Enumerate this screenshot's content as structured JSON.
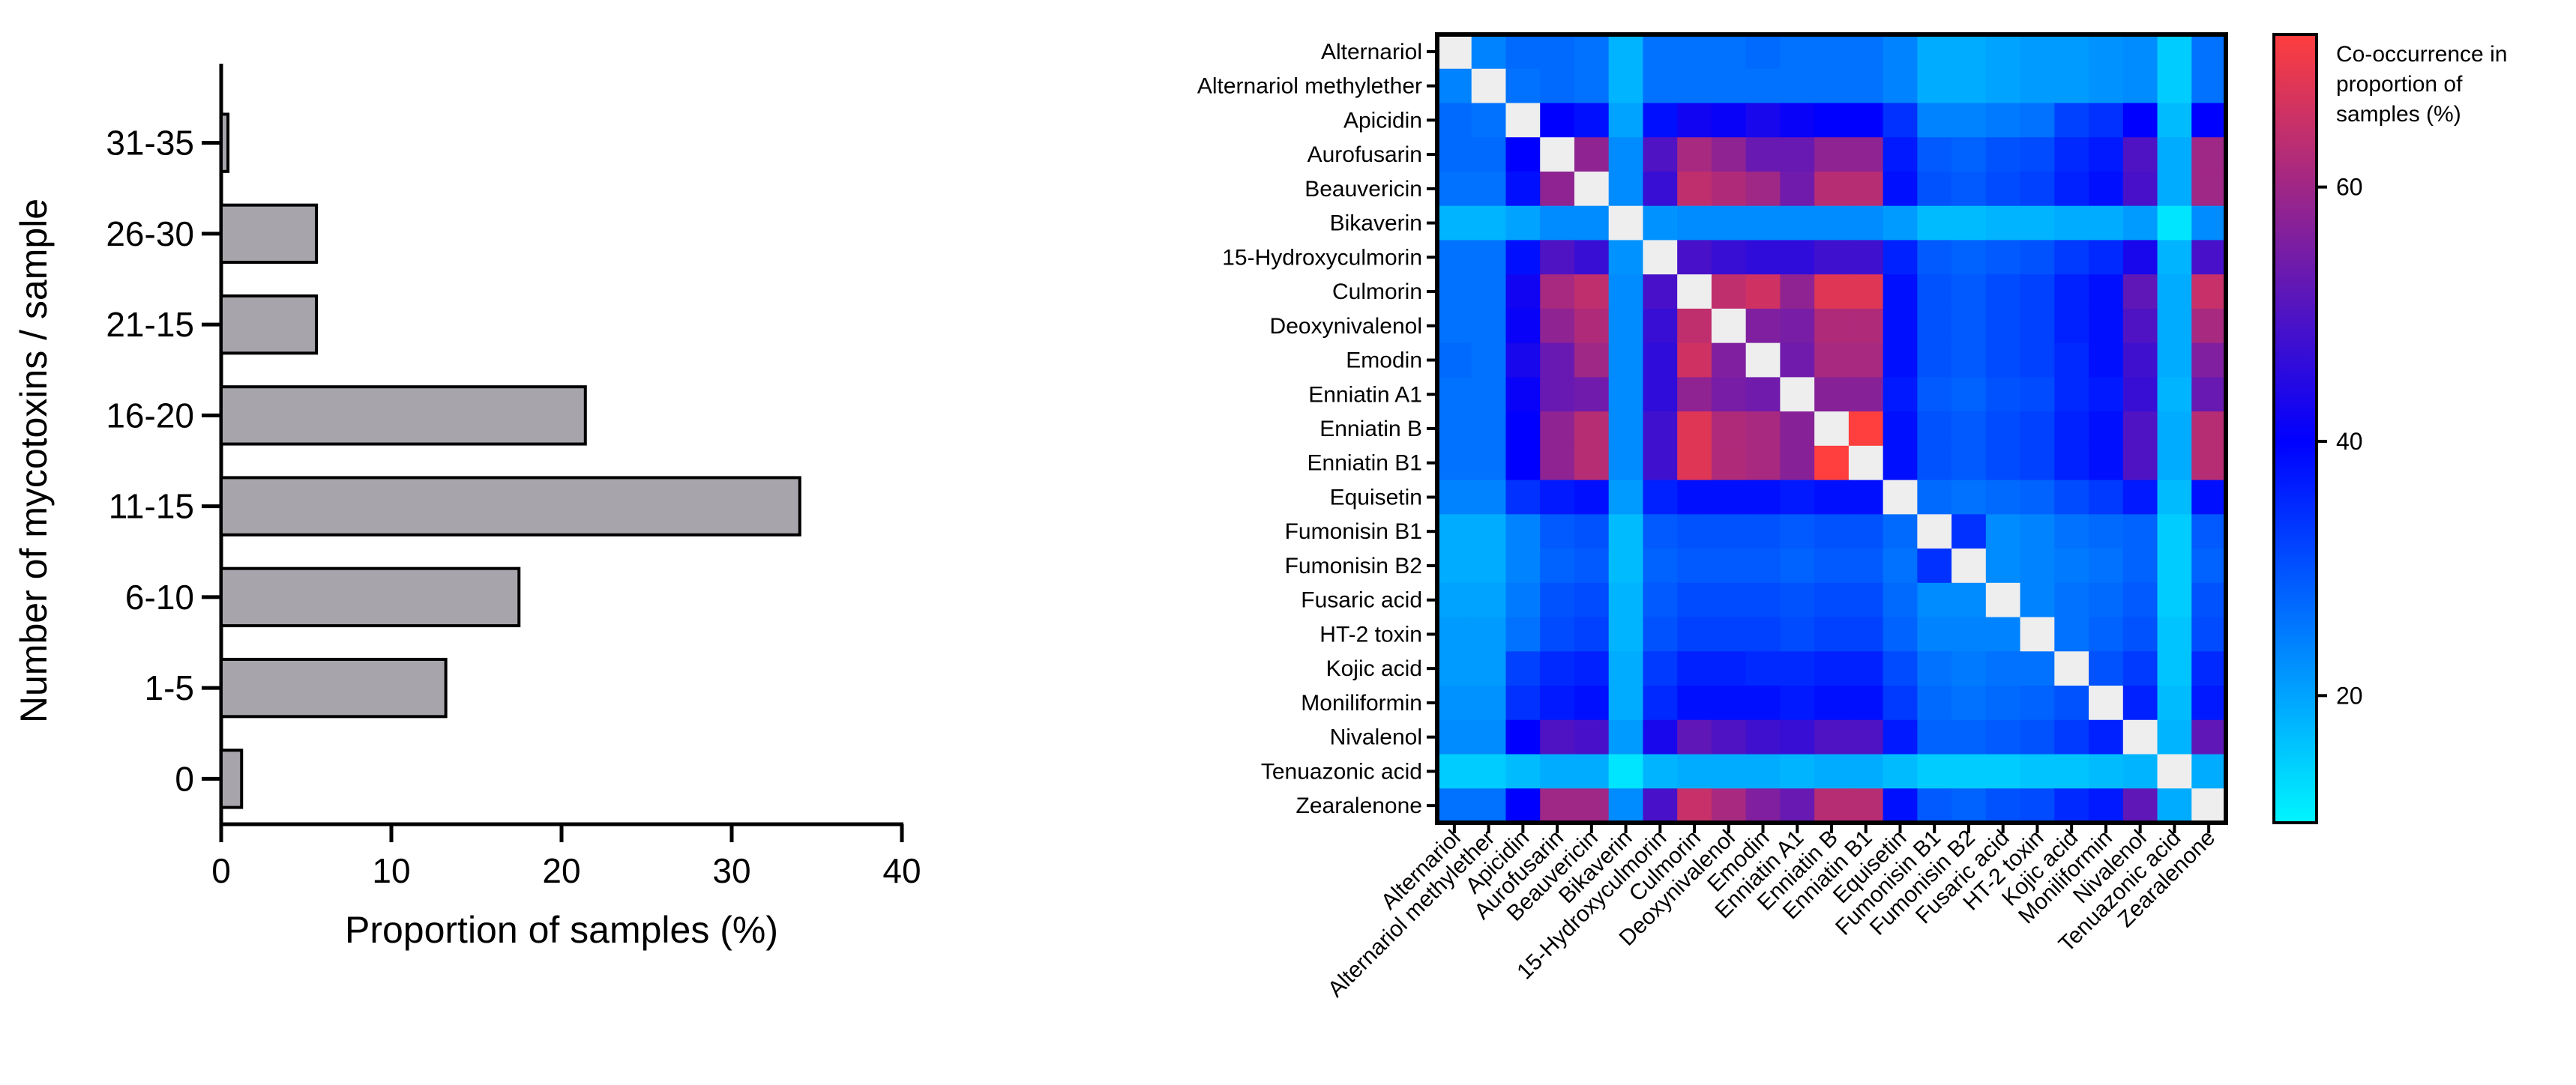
{
  "chart_data": [
    {
      "type": "bar",
      "orientation": "horizontal",
      "categories": [
        "0",
        "1-5",
        "6-10",
        "11-15",
        "16-20",
        "21-15",
        "26-30",
        "31-35"
      ],
      "values": [
        1.2,
        13.2,
        17.5,
        34,
        21.4,
        5.6,
        5.6,
        0.4
      ],
      "xlabel": "Proportion of samples (%)",
      "ylabel": "Number of mycotoxins / sample",
      "xlim": [
        0,
        40
      ],
      "xticks": [
        "0",
        "10",
        "20",
        "30",
        "40"
      ],
      "bar_color": "#a7a5ab",
      "grid": false,
      "legend": "none"
    },
    {
      "type": "heatmap",
      "labels": [
        "Alternariol",
        "Alternariol methylether",
        "Apicidin",
        "Aurofusarin",
        "Beauvericin",
        "Bikaverin",
        "15-Hydroxyculmorin",
        "Culmorin",
        "Deoxynivalenol",
        "Emodin",
        "Enniatin A1",
        "Enniatin B",
        "Enniatin B1",
        "Equisetin",
        "Fumonisin B1",
        "Fumonisin B2",
        "Fusaric acid",
        "HT-2 toxin",
        "Kojic acid",
        "Moniliformin",
        "Nivalenol",
        "Tenuazonic acid",
        "Zearalenone"
      ],
      "matrix": [
        [
          null,
          24,
          27,
          27,
          26,
          18,
          26,
          26,
          26,
          27,
          26,
          26,
          26,
          24,
          19,
          19,
          20,
          21,
          21,
          22,
          23,
          15,
          26
        ],
        [
          24,
          null,
          26,
          27,
          26,
          18,
          26,
          26,
          26,
          26,
          26,
          26,
          26,
          24,
          19,
          19,
          20,
          21,
          21,
          22,
          23,
          15,
          26
        ],
        [
          27,
          26,
          null,
          40,
          38,
          20,
          38,
          42,
          41,
          43,
          41,
          40,
          40,
          34,
          24,
          24,
          25,
          26,
          32,
          34,
          40,
          17,
          40
        ],
        [
          27,
          27,
          40,
          null,
          58,
          23,
          50,
          61,
          58,
          53,
          53,
          58,
          58,
          37,
          29,
          28,
          30,
          31,
          35,
          37,
          50,
          19,
          60
        ],
        [
          26,
          26,
          38,
          58,
          null,
          23,
          47,
          64,
          62,
          60,
          54,
          63,
          63,
          38,
          30,
          29,
          31,
          32,
          36,
          38,
          49,
          19,
          60
        ],
        [
          18,
          18,
          20,
          23,
          23,
          null,
          22,
          23,
          23,
          23,
          23,
          23,
          23,
          21,
          17,
          17,
          18,
          18,
          19,
          19,
          21,
          12,
          23
        ],
        [
          26,
          26,
          38,
          50,
          47,
          22,
          null,
          49,
          47,
          46,
          46,
          48,
          48,
          36,
          29,
          28,
          29,
          30,
          33,
          35,
          43,
          18,
          49
        ],
        [
          26,
          26,
          42,
          61,
          64,
          23,
          49,
          null,
          64,
          66,
          58,
          68,
          68,
          38,
          30,
          29,
          31,
          32,
          36,
          38,
          52,
          19,
          65
        ],
        [
          26,
          26,
          41,
          58,
          62,
          23,
          47,
          64,
          null,
          56,
          55,
          62,
          62,
          38,
          30,
          29,
          31,
          32,
          36,
          38,
          50,
          19,
          61
        ],
        [
          27,
          26,
          43,
          53,
          60,
          23,
          46,
          66,
          56,
          null,
          54,
          61,
          61,
          38,
          30,
          29,
          31,
          32,
          35,
          38,
          48,
          19,
          56
        ],
        [
          26,
          26,
          41,
          53,
          54,
          23,
          46,
          58,
          55,
          54,
          null,
          57,
          57,
          37,
          29,
          28,
          30,
          31,
          35,
          37,
          47,
          18,
          53
        ],
        [
          26,
          26,
          40,
          58,
          63,
          23,
          48,
          68,
          62,
          61,
          57,
          null,
          72,
          38,
          30,
          29,
          31,
          32,
          36,
          38,
          50,
          19,
          63
        ],
        [
          26,
          26,
          40,
          58,
          63,
          23,
          48,
          68,
          62,
          61,
          57,
          72,
          null,
          38,
          30,
          29,
          31,
          32,
          36,
          38,
          50,
          19,
          63
        ],
        [
          24,
          24,
          34,
          37,
          38,
          21,
          36,
          38,
          38,
          38,
          37,
          38,
          38,
          null,
          27,
          26,
          27,
          28,
          31,
          33,
          37,
          17,
          38
        ],
        [
          19,
          19,
          24,
          29,
          30,
          17,
          29,
          30,
          30,
          30,
          29,
          30,
          30,
          27,
          null,
          34,
          23,
          24,
          26,
          27,
          28,
          15,
          29
        ],
        [
          19,
          19,
          24,
          28,
          29,
          17,
          28,
          29,
          29,
          29,
          28,
          29,
          29,
          26,
          34,
          null,
          23,
          24,
          25,
          26,
          28,
          15,
          28
        ],
        [
          20,
          20,
          25,
          30,
          31,
          18,
          29,
          31,
          31,
          31,
          30,
          31,
          31,
          27,
          23,
          23,
          null,
          24,
          26,
          27,
          29,
          15,
          30
        ],
        [
          21,
          21,
          26,
          31,
          32,
          18,
          30,
          32,
          32,
          32,
          31,
          32,
          32,
          28,
          24,
          24,
          24,
          null,
          26,
          28,
          30,
          16,
          31
        ],
        [
          21,
          21,
          32,
          35,
          36,
          19,
          33,
          36,
          36,
          35,
          35,
          36,
          36,
          31,
          26,
          25,
          26,
          26,
          null,
          30,
          33,
          16,
          35
        ],
        [
          22,
          22,
          34,
          37,
          38,
          19,
          35,
          38,
          38,
          38,
          37,
          38,
          38,
          33,
          27,
          26,
          27,
          28,
          30,
          null,
          36,
          17,
          37
        ],
        [
          23,
          23,
          40,
          50,
          49,
          21,
          43,
          52,
          50,
          48,
          47,
          50,
          50,
          37,
          28,
          28,
          29,
          30,
          33,
          36,
          null,
          18,
          52
        ],
        [
          15,
          15,
          17,
          19,
          19,
          12,
          18,
          19,
          19,
          19,
          18,
          19,
          19,
          17,
          15,
          15,
          15,
          16,
          16,
          17,
          18,
          null,
          19
        ],
        [
          26,
          26,
          40,
          60,
          60,
          23,
          49,
          65,
          61,
          56,
          53,
          63,
          63,
          38,
          29,
          28,
          30,
          31,
          35,
          37,
          52,
          19,
          null
        ]
      ],
      "colorbar_label": "Co-occurrence in proportion of samples (%)",
      "colorbar_ticks": [
        "20",
        "40",
        "60"
      ],
      "colorbar_range": [
        10,
        72
      ],
      "colormap": [
        "#00f5ff",
        "#0000ff",
        "#ff3e3e"
      ],
      "diagonal_color": "#eeeeee"
    }
  ]
}
